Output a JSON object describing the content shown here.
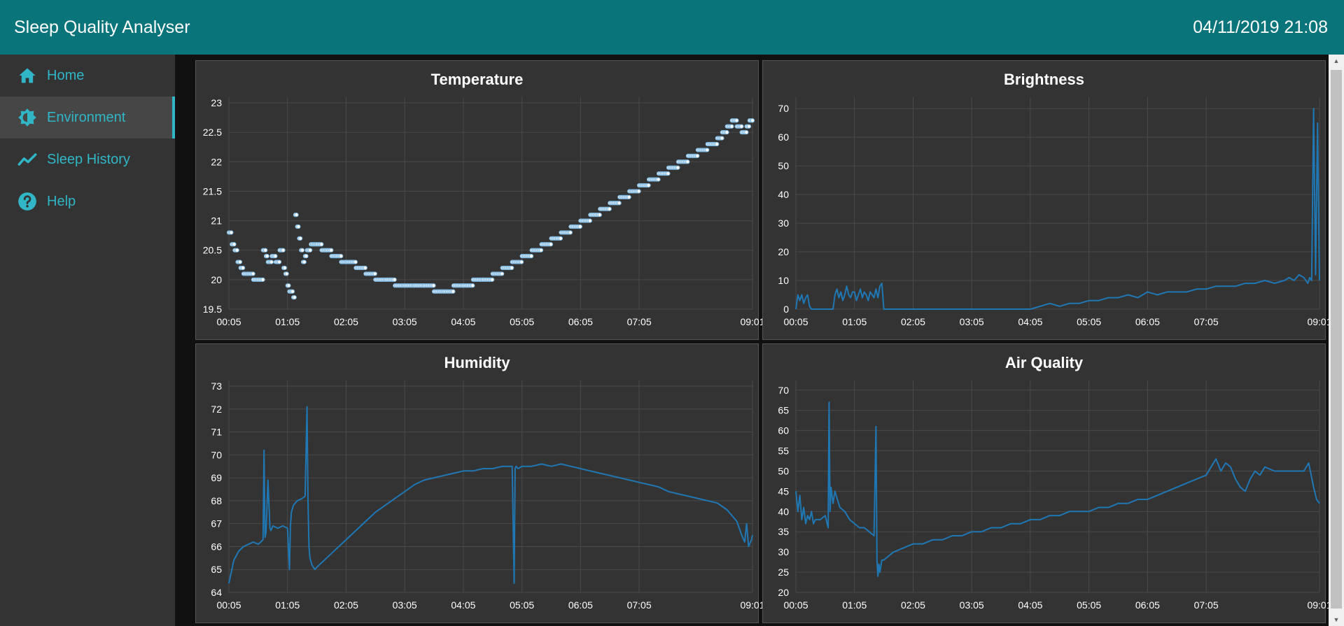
{
  "header": {
    "title": "Sleep Quality Analyser",
    "datetime": "04/11/2019 21:08"
  },
  "sidebar": {
    "items": [
      {
        "label": "Home",
        "icon": "home-icon",
        "active": false
      },
      {
        "label": "Environment",
        "icon": "environment-icon",
        "active": true
      },
      {
        "label": "Sleep History",
        "icon": "trend-line-icon",
        "active": false
      },
      {
        "label": "Help",
        "icon": "help-icon",
        "active": false
      }
    ]
  },
  "colors": {
    "header": "#097479",
    "accent": "#30b6c6",
    "series": "#1f77b4",
    "panel": "#333333"
  },
  "chart_data": [
    {
      "type": "scatter",
      "title": "Temperature",
      "x_ticks": [
        "00:05",
        "01:05",
        "02:05",
        "03:05",
        "04:05",
        "05:05",
        "06:05",
        "07:05",
        "09:01"
      ],
      "x_tick_minutes": [
        0,
        60,
        120,
        180,
        240,
        300,
        360,
        420,
        536
      ],
      "y_ticks": [
        "19.5",
        "20",
        "20.5",
        "21",
        "21.5",
        "22",
        "22.5",
        "23"
      ],
      "ylim": [
        19.5,
        23
      ],
      "grid": true,
      "series": [
        {
          "x_minutes": [
            0,
            3,
            6,
            9,
            12,
            15,
            20,
            25,
            30,
            35,
            38,
            40,
            44,
            48,
            52,
            56,
            58,
            60,
            62,
            64,
            66,
            68,
            70,
            72,
            74,
            76,
            78,
            80,
            82,
            84,
            86,
            88,
            90,
            95,
            100,
            105,
            110,
            115,
            120,
            130,
            140,
            150,
            160,
            170,
            180,
            190,
            200,
            210,
            220,
            230,
            240,
            250,
            260,
            270,
            280,
            290,
            300,
            310,
            320,
            330,
            340,
            350,
            360,
            370,
            380,
            390,
            400,
            410,
            420,
            430,
            440,
            450,
            460,
            470,
            480,
            490,
            500,
            505,
            510,
            515,
            520,
            525,
            530,
            533,
            536
          ],
          "values": [
            20.8,
            20.6,
            20.5,
            20.3,
            20.2,
            20.1,
            20.1,
            20.0,
            20.0,
            20.5,
            20.4,
            20.3,
            20.4,
            20.3,
            20.5,
            20.2,
            20.1,
            19.9,
            19.8,
            19.8,
            19.7,
            21.1,
            20.9,
            20.7,
            20.5,
            20.3,
            20.4,
            20.5,
            20.5,
            20.6,
            20.6,
            20.6,
            20.6,
            20.5,
            20.5,
            20.4,
            20.4,
            20.3,
            20.3,
            20.2,
            20.1,
            20.0,
            20.0,
            19.9,
            19.9,
            19.9,
            19.9,
            19.8,
            19.8,
            19.9,
            19.9,
            20.0,
            20.0,
            20.1,
            20.2,
            20.3,
            20.4,
            20.5,
            20.6,
            20.7,
            20.8,
            20.9,
            21.0,
            21.1,
            21.2,
            21.3,
            21.4,
            21.5,
            21.6,
            21.7,
            21.8,
            21.9,
            22.0,
            22.1,
            22.2,
            22.3,
            22.4,
            22.5,
            22.6,
            22.7,
            22.6,
            22.5,
            22.6,
            22.7,
            22.7
          ]
        }
      ]
    },
    {
      "type": "line",
      "title": "Brightness",
      "x_ticks": [
        "00:05",
        "01:05",
        "02:05",
        "03:05",
        "04:05",
        "05:05",
        "06:05",
        "07:05",
        "09:01"
      ],
      "x_tick_minutes": [
        0,
        60,
        120,
        180,
        240,
        300,
        360,
        420,
        536
      ],
      "y_ticks": [
        "0",
        "10",
        "20",
        "30",
        "40",
        "50",
        "60",
        "70"
      ],
      "ylim": [
        0,
        72
      ],
      "grid": true,
      "series": [
        {
          "x_minutes": [
            0,
            2,
            4,
            6,
            8,
            10,
            12,
            14,
            16,
            18,
            20,
            22,
            24,
            26,
            28,
            30,
            32,
            34,
            36,
            38,
            40,
            42,
            44,
            46,
            48,
            50,
            52,
            54,
            56,
            58,
            60,
            62,
            64,
            66,
            68,
            70,
            72,
            74,
            76,
            78,
            80,
            82,
            84,
            86,
            88,
            90,
            100,
            120,
            140,
            160,
            180,
            200,
            230,
            240,
            250,
            260,
            270,
            280,
            290,
            300,
            310,
            320,
            330,
            340,
            350,
            360,
            370,
            380,
            390,
            400,
            410,
            420,
            430,
            440,
            450,
            460,
            470,
            480,
            490,
            500,
            505,
            510,
            515,
            520,
            524,
            526,
            528,
            530,
            532,
            534,
            536
          ],
          "values": [
            0,
            5,
            3,
            5,
            2,
            4,
            5,
            1,
            0,
            0,
            0,
            0,
            0,
            0,
            0,
            0,
            0,
            0,
            0,
            0,
            5,
            7,
            4,
            6,
            3,
            5,
            8,
            5,
            4,
            6,
            6,
            3,
            5,
            7,
            4,
            6,
            5,
            3,
            6,
            5,
            4,
            7,
            4,
            8,
            9,
            0,
            0,
            0,
            0,
            0,
            0,
            0,
            0,
            0,
            1,
            2,
            1,
            2,
            2,
            3,
            3,
            4,
            4,
            5,
            4,
            6,
            5,
            6,
            6,
            6,
            7,
            7,
            8,
            8,
            8,
            9,
            9,
            10,
            9,
            10,
            11,
            10,
            12,
            11,
            9,
            11,
            10,
            70,
            12,
            65,
            10
          ]
        }
      ]
    },
    {
      "type": "line",
      "title": "Humidity",
      "x_ticks": [
        "00:05",
        "01:05",
        "02:05",
        "03:05",
        "04:05",
        "05:05",
        "06:05",
        "07:05",
        "09:01"
      ],
      "x_tick_minutes": [
        0,
        60,
        120,
        180,
        240,
        300,
        360,
        420,
        536
      ],
      "y_ticks": [
        "64",
        "65",
        "66",
        "67",
        "68",
        "69",
        "70",
        "71",
        "72",
        "73"
      ],
      "ylim": [
        64,
        73
      ],
      "grid": true,
      "series": [
        {
          "x_minutes": [
            0,
            2,
            5,
            10,
            15,
            20,
            25,
            30,
            35,
            36,
            37,
            38,
            40,
            42,
            43,
            45,
            50,
            55,
            60,
            62,
            63,
            64,
            66,
            70,
            75,
            78,
            80,
            81,
            82,
            83,
            85,
            88,
            90,
            95,
            100,
            110,
            120,
            130,
            140,
            150,
            160,
            170,
            180,
            190,
            200,
            210,
            220,
            230,
            240,
            250,
            260,
            270,
            280,
            290,
            292,
            293,
            294,
            296,
            300,
            310,
            320,
            330,
            340,
            350,
            360,
            370,
            380,
            390,
            400,
            410,
            420,
            430,
            440,
            450,
            460,
            470,
            480,
            490,
            500,
            510,
            520,
            525,
            528,
            530,
            532,
            535,
            536
          ],
          "values": [
            64.4,
            64.8,
            65.4,
            65.8,
            66.0,
            66.1,
            66.2,
            66.1,
            66.3,
            70.2,
            66.4,
            66.6,
            68.9,
            66.8,
            66.7,
            66.9,
            66.8,
            66.9,
            66.8,
            65.0,
            66.9,
            67.5,
            67.8,
            68.0,
            68.1,
            68.2,
            72.1,
            68.0,
            66.0,
            65.5,
            65.2,
            65.0,
            65.1,
            65.3,
            65.5,
            65.9,
            66.3,
            66.7,
            67.1,
            67.5,
            67.8,
            68.1,
            68.4,
            68.7,
            68.9,
            69.0,
            69.1,
            69.2,
            69.3,
            69.3,
            69.4,
            69.4,
            69.5,
            69.5,
            64.4,
            69.4,
            69.5,
            69.4,
            69.5,
            69.5,
            69.6,
            69.5,
            69.6,
            69.5,
            69.4,
            69.3,
            69.2,
            69.1,
            69.0,
            68.9,
            68.8,
            68.7,
            68.6,
            68.4,
            68.3,
            68.2,
            68.1,
            68.0,
            67.9,
            67.6,
            67.1,
            66.5,
            66.2,
            67.0,
            66.0,
            66.3,
            66.5
          ]
        }
      ]
    },
    {
      "type": "line",
      "title": "Air Quality",
      "x_ticks": [
        "00:05",
        "01:05",
        "02:05",
        "03:05",
        "04:05",
        "05:05",
        "06:05",
        "07:05",
        "09:01"
      ],
      "x_tick_minutes": [
        0,
        60,
        120,
        180,
        240,
        300,
        360,
        420,
        536
      ],
      "y_ticks": [
        "20",
        "25",
        "30",
        "35",
        "40",
        "45",
        "50",
        "55",
        "60",
        "65",
        "70"
      ],
      "ylim": [
        20,
        71
      ],
      "grid": true,
      "series": [
        {
          "x_minutes": [
            0,
            2,
            4,
            6,
            8,
            10,
            12,
            14,
            16,
            18,
            20,
            25,
            30,
            33,
            34,
            35,
            36,
            38,
            40,
            45,
            50,
            55,
            60,
            65,
            70,
            75,
            80,
            82,
            83,
            84,
            85,
            86,
            88,
            90,
            95,
            100,
            110,
            120,
            130,
            140,
            150,
            160,
            170,
            180,
            190,
            200,
            210,
            220,
            230,
            240,
            250,
            260,
            270,
            280,
            290,
            300,
            310,
            320,
            330,
            340,
            350,
            360,
            370,
            380,
            390,
            400,
            410,
            420,
            425,
            430,
            435,
            440,
            445,
            450,
            455,
            460,
            465,
            470,
            475,
            480,
            490,
            500,
            510,
            520,
            525,
            530,
            533,
            536
          ],
          "values": [
            45,
            40,
            44,
            38,
            41,
            37,
            39,
            38,
            40,
            37,
            38,
            38,
            39,
            36,
            67,
            40,
            46,
            42,
            45,
            41,
            40,
            38,
            37,
            36,
            36,
            35,
            34,
            61,
            28,
            24,
            27,
            25,
            28,
            28,
            29,
            30,
            31,
            32,
            32,
            33,
            33,
            34,
            34,
            35,
            35,
            36,
            36,
            37,
            37,
            38,
            38,
            39,
            39,
            40,
            40,
            40,
            41,
            41,
            42,
            42,
            43,
            43,
            44,
            45,
            46,
            47,
            48,
            49,
            51,
            53,
            50,
            52,
            51,
            48,
            46,
            45,
            48,
            50,
            49,
            51,
            50,
            50,
            50,
            50,
            52,
            46,
            43,
            42
          ]
        }
      ]
    }
  ]
}
